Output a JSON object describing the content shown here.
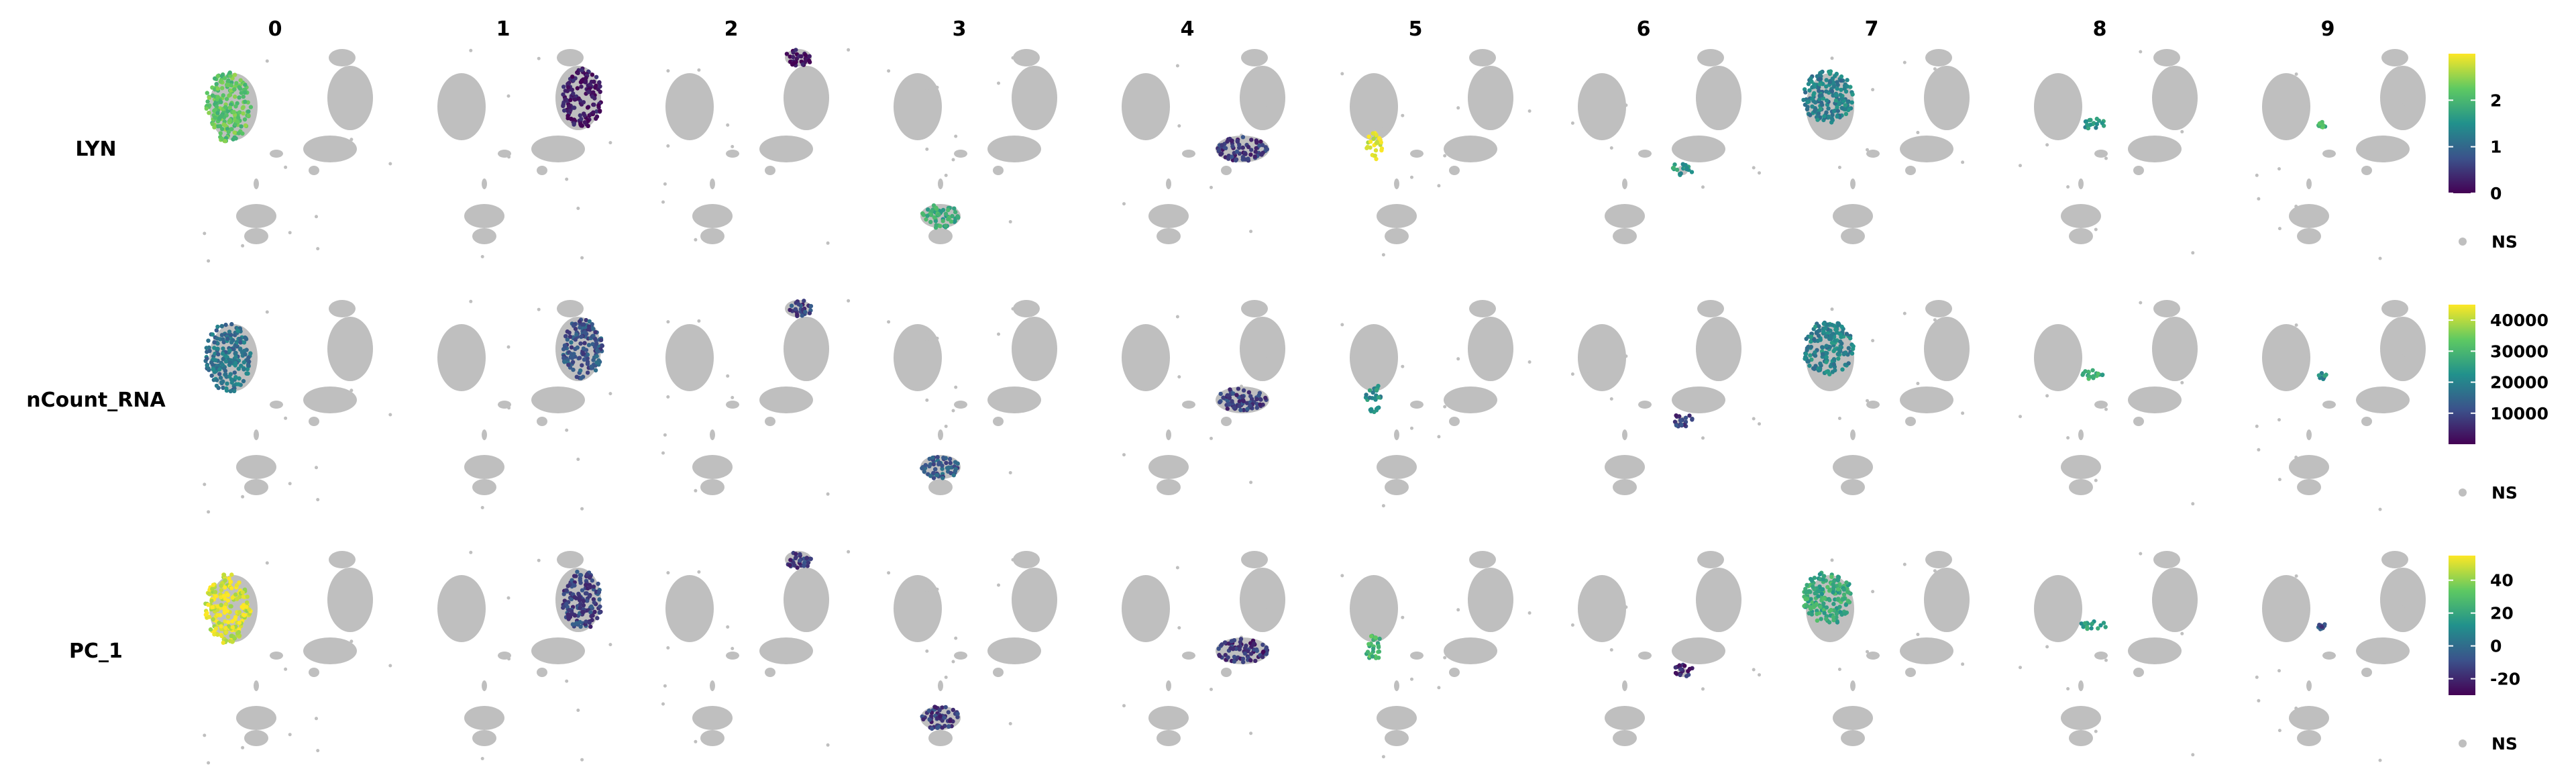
{
  "chart_data": {
    "type": "scatter",
    "title": "",
    "xlabel": "",
    "ylabel": "",
    "grid": false,
    "colormap": "viridis",
    "background_color": "#bfbfbf",
    "columns": [
      "0",
      "1",
      "2",
      "3",
      "4",
      "5",
      "6",
      "7",
      "8",
      "9"
    ],
    "rows": [
      {
        "feature": "LYN",
        "colorbar": {
          "range": [
            0,
            3
          ],
          "ticks": [
            0,
            1,
            2
          ],
          "tick_labels": [
            "0",
            "1",
            "2"
          ]
        },
        "na_label": "NS",
        "cluster_values": [
          2.2,
          0.15,
          0.1,
          1.8,
          0.5,
          2.9,
          1.6,
          1.3,
          1.5,
          2.0
        ]
      },
      {
        "feature": "nCount_RNA",
        "colorbar": {
          "range": [
            0,
            45000
          ],
          "ticks": [
            10000,
            20000,
            30000,
            40000
          ],
          "tick_labels": [
            "10000",
            "20000",
            "30000",
            "40000"
          ]
        },
        "na_label": "NS",
        "cluster_values": [
          17000,
          12000,
          9000,
          13000,
          9000,
          22000,
          8000,
          20000,
          27000,
          22000
        ]
      },
      {
        "feature": "PC_1",
        "colorbar": {
          "range": [
            -30,
            55
          ],
          "ticks": [
            -20,
            0,
            20,
            40
          ],
          "tick_labels": [
            "-20",
            "0",
            "20",
            "40"
          ]
        },
        "na_label": "NS",
        "cluster_values": [
          50,
          -12,
          -15,
          -15,
          -18,
          28,
          -20,
          22,
          18,
          -10
        ]
      }
    ]
  }
}
